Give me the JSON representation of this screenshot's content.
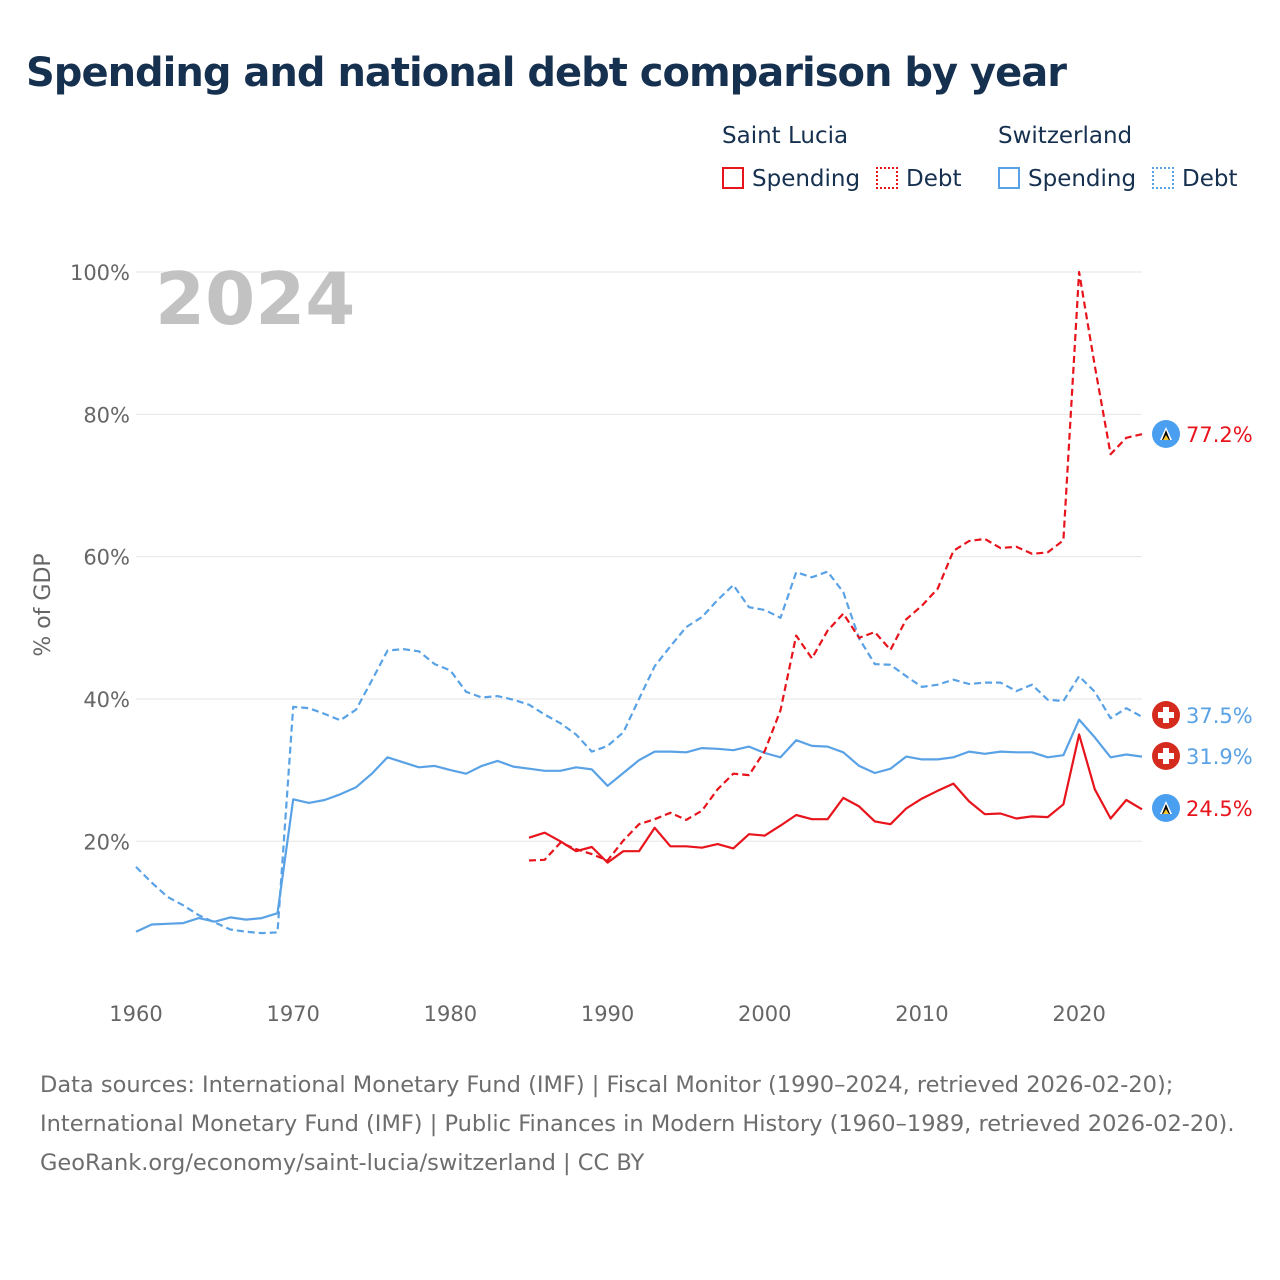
{
  "title": "Spending and national debt comparison by year",
  "year_watermark": "2024",
  "legend": {
    "groups": [
      {
        "country": "Saint Lucia",
        "color": "#e8141c",
        "items": [
          {
            "label": "Spending",
            "style": "solid"
          },
          {
            "label": "Debt",
            "style": "dotted"
          }
        ]
      },
      {
        "country": "Switzerland",
        "color": "#5aa2e6",
        "items": [
          {
            "label": "Spending",
            "style": "solid"
          },
          {
            "label": "Debt",
            "style": "dotted"
          }
        ]
      }
    ]
  },
  "end_labels": [
    {
      "series": "Saint Lucia Debt",
      "text": "77.2%",
      "icon": "saint-lucia-flag-icon"
    },
    {
      "series": "Switzerland Debt",
      "text": "37.5%",
      "icon": "switzerland-flag-icon"
    },
    {
      "series": "Switzerland Spending",
      "text": "31.9%",
      "icon": "switzerland-flag-icon"
    },
    {
      "series": "Saint Lucia Spending",
      "text": "24.5%",
      "icon": "saint-lucia-flag-icon"
    }
  ],
  "source": {
    "line1": "Data sources: International Monetary Fund (IMF) | Fiscal Monitor (1990–2024, retrieved 2026-02-20); International Monetary Fund (IMF) | Public Finances in Modern History (1960–1989, retrieved 2026-02-20).",
    "line2": "GeoRank.org/economy/saint-lucia/switzerland | CC BY"
  },
  "chart_data": {
    "type": "line",
    "title": "Spending and national debt comparison by year",
    "xlabel": "",
    "ylabel": "% of GDP",
    "xlim": [
      1960,
      2024
    ],
    "ylim": [
      0,
      100
    ],
    "x_ticks": [
      1960,
      1970,
      1980,
      1990,
      2000,
      2010,
      2020
    ],
    "y_ticks": [
      20,
      40,
      60,
      80,
      100
    ],
    "y_tick_labels": [
      "20%",
      "40%",
      "60%",
      "80%",
      "100%"
    ],
    "x_tick_labels": [
      "1960",
      "1970",
      "1980",
      "1990",
      "2000",
      "2010",
      "2020"
    ],
    "grid": "horizontal",
    "legend_position": "top-right",
    "series": [
      {
        "name": "Switzerland Spending",
        "country": "Switzerland",
        "metric": "Spending",
        "color": "#5aa2e6",
        "dash": "solid",
        "x": [
          1960,
          1961,
          1962,
          1963,
          1964,
          1965,
          1966,
          1967,
          1968,
          1969,
          1970,
          1971,
          1972,
          1973,
          1974,
          1975,
          1976,
          1977,
          1978,
          1979,
          1980,
          1981,
          1982,
          1983,
          1984,
          1985,
          1986,
          1987,
          1988,
          1989,
          1990,
          1991,
          1992,
          1993,
          1994,
          1995,
          1996,
          1997,
          1998,
          1999,
          2000,
          2001,
          2002,
          2003,
          2004,
          2005,
          2006,
          2007,
          2008,
          2009,
          2010,
          2011,
          2012,
          2013,
          2014,
          2015,
          2016,
          2017,
          2018,
          2019,
          2020,
          2021,
          2022,
          2023,
          2024
        ],
        "y": [
          7.3,
          8.3,
          8.4,
          8.5,
          9.2,
          8.7,
          9.3,
          9.0,
          9.2,
          9.9,
          25.9,
          25.4,
          25.8,
          26.6,
          27.6,
          29.5,
          31.8,
          31.1,
          30.4,
          30.6,
          30.0,
          29.5,
          30.6,
          31.3,
          30.5,
          30.2,
          29.9,
          29.9,
          30.4,
          30.1,
          27.8,
          29.6,
          31.4,
          32.6,
          32.6,
          32.5,
          33.1,
          33.0,
          32.8,
          33.3,
          32.4,
          31.8,
          34.2,
          33.4,
          33.3,
          32.5,
          30.6,
          29.6,
          30.2,
          31.9,
          31.5,
          31.5,
          31.8,
          32.6,
          32.3,
          32.6,
          32.5,
          32.5,
          31.8,
          32.1,
          37.1,
          34.6,
          31.8,
          32.2,
          31.9
        ]
      },
      {
        "name": "Switzerland Debt",
        "country": "Switzerland",
        "metric": "Debt",
        "color": "#5aa2e6",
        "dash": "dashed",
        "x": [
          1960,
          1961,
          1962,
          1963,
          1964,
          1965,
          1966,
          1967,
          1968,
          1969,
          1970,
          1971,
          1972,
          1973,
          1974,
          1975,
          1976,
          1977,
          1978,
          1979,
          1980,
          1981,
          1982,
          1983,
          1984,
          1985,
          1986,
          1987,
          1988,
          1989,
          1990,
          1991,
          1992,
          1993,
          1994,
          1995,
          1996,
          1997,
          1998,
          1999,
          2000,
          2001,
          2002,
          2003,
          2004,
          2005,
          2006,
          2007,
          2008,
          2009,
          2010,
          2011,
          2012,
          2013,
          2014,
          2015,
          2016,
          2017,
          2018,
          2019,
          2020,
          2021,
          2022,
          2023,
          2024
        ],
        "y": [
          16.4,
          14.2,
          12.2,
          11.0,
          9.6,
          8.6,
          7.6,
          7.3,
          7.1,
          7.2,
          38.9,
          38.7,
          37.9,
          37.0,
          38.5,
          42.6,
          46.8,
          47.0,
          46.7,
          44.9,
          44.0,
          41.0,
          40.2,
          40.4,
          39.9,
          39.2,
          37.8,
          36.6,
          35.0,
          32.6,
          33.4,
          35.3,
          40.0,
          44.6,
          47.4,
          50.1,
          51.5,
          53.9,
          56.0,
          52.9,
          52.5,
          51.4,
          57.8,
          57.1,
          57.9,
          55.0,
          48.5,
          44.9,
          44.8,
          43.2,
          41.7,
          42.0,
          42.7,
          42.1,
          42.3,
          42.3,
          41.1,
          42.0,
          39.9,
          39.7,
          43.2,
          41.0,
          37.3,
          38.7,
          37.5
        ]
      },
      {
        "name": "Saint Lucia Spending",
        "country": "Saint Lucia",
        "metric": "Spending",
        "color": "#e8141c",
        "dash": "solid",
        "x": [
          1985,
          1986,
          1987,
          1988,
          1989,
          1990,
          1991,
          1992,
          1993,
          1994,
          1995,
          1996,
          1997,
          1998,
          1999,
          2000,
          2001,
          2002,
          2003,
          2004,
          2005,
          2006,
          2007,
          2008,
          2009,
          2010,
          2011,
          2012,
          2013,
          2014,
          2015,
          2016,
          2017,
          2018,
          2019,
          2020,
          2021,
          2022,
          2023,
          2024
        ],
        "y": [
          20.5,
          21.2,
          20.0,
          18.6,
          19.2,
          17.0,
          18.6,
          18.6,
          21.9,
          19.3,
          19.3,
          19.1,
          19.6,
          19.0,
          21.0,
          20.8,
          22.2,
          23.7,
          23.1,
          23.1,
          26.1,
          24.9,
          22.8,
          22.4,
          24.6,
          26.0,
          27.1,
          28.1,
          25.6,
          23.8,
          23.9,
          23.2,
          23.5,
          23.4,
          25.2,
          35.0,
          27.3,
          23.2,
          25.8,
          24.5
        ]
      },
      {
        "name": "Saint Lucia Debt",
        "country": "Saint Lucia",
        "metric": "Debt",
        "color": "#e8141c",
        "dash": "dashed",
        "x": [
          1985,
          1986,
          1987,
          1988,
          1989,
          1990,
          1991,
          1992,
          1993,
          1994,
          1995,
          1996,
          1997,
          1998,
          1999,
          2000,
          2001,
          2002,
          2003,
          2004,
          2005,
          2006,
          2007,
          2008,
          2009,
          2010,
          2011,
          2012,
          2013,
          2014,
          2015,
          2016,
          2017,
          2018,
          2019,
          2020,
          2021,
          2022,
          2023,
          2024
        ],
        "y": [
          17.3,
          17.4,
          19.8,
          18.9,
          18.2,
          17.3,
          20.1,
          22.4,
          23.1,
          24.0,
          23.0,
          24.3,
          27.3,
          29.5,
          29.3,
          32.7,
          38.4,
          48.9,
          45.7,
          49.6,
          52.0,
          48.6,
          49.4,
          46.9,
          51.2,
          53.1,
          55.5,
          60.8,
          62.2,
          62.5,
          61.2,
          61.4,
          60.4,
          60.6,
          62.3,
          100.0,
          86.8,
          74.4,
          76.7,
          77.2
        ]
      }
    ]
  }
}
